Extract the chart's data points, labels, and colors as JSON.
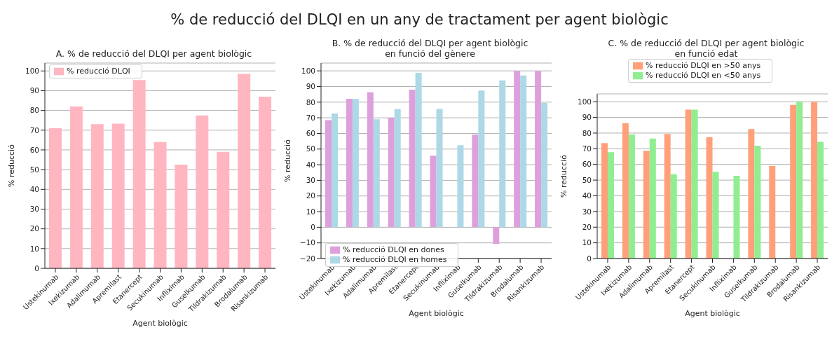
{
  "chart_data": [
    {
      "type": "bar",
      "title": "A. % de reducció del DLQI per agent biològic",
      "annotations": [
        "% de reducció del DLQI en un any de tractament per agent biològic"
      ],
      "xlabel": "Agent biològic",
      "ylabel": "% reducció",
      "categories": [
        "Ustekinumab",
        "Ixekizumab",
        "Adalimumab",
        "Apremilast",
        "Etanercept",
        "Secukinumab",
        "Infliximab",
        "Guselkumab",
        "Tildrakizumab",
        "Brodalumab",
        "Risankizumab"
      ],
      "series": [
        {
          "name": "% reducció DLQI",
          "color": "#ffb6c1",
          "values": [
            71,
            82,
            73,
            73.3,
            95.4,
            64,
            52.5,
            77.5,
            59,
            98.5,
            87
          ]
        }
      ],
      "ylim": [
        0,
        104
      ],
      "yticks": [
        0,
        10,
        20,
        30,
        40,
        50,
        60,
        70,
        80,
        90,
        100
      ],
      "grid": "y",
      "legend": "top left"
    },
    {
      "type": "bar",
      "title": "B. % de reducció del DLQI per agent biològic en funció del gènere",
      "xlabel": "Agent biològic",
      "ylabel": "% reducció",
      "categories": [
        "Ustekinumab",
        "Ixekizumab",
        "Adalimumab",
        "Apremilast",
        "Etanercept",
        "Secukinumab",
        "Infliximab",
        "Guselkumab",
        "Tildrakizumab",
        "Brodalumab",
        "Risankizumab"
      ],
      "series": [
        {
          "name": "% reducció DLQI en dones",
          "color": "#dda0dd",
          "values": [
            68.5,
            82.2,
            86.3,
            70,
            88,
            45.7,
            null,
            59.3,
            -10.7,
            100,
            100
          ]
        },
        {
          "name": "% reducció DLQI en homes",
          "color": "#add8e6",
          "values": [
            72.7,
            82,
            69,
            75.5,
            98.7,
            75.7,
            52.5,
            87.4,
            93.9,
            97,
            79.5
          ]
        }
      ],
      "ylim": [
        -20,
        105
      ],
      "yticks": [
        -20,
        -10,
        0,
        10,
        20,
        30,
        40,
        50,
        60,
        70,
        80,
        90,
        100
      ],
      "grid": "y",
      "legend": "bottom left"
    },
    {
      "type": "bar",
      "title": "C. % de reducció del DLQI per agent biològic en funció edat",
      "xlabel": "Agent biològic",
      "ylabel": "% reducció",
      "categories": [
        "Ustekinumab",
        "Ixekizumab",
        "Adalimumab",
        "Apremilast",
        "Etanercept",
        "Secukinumab",
        "Infliximab",
        "Guselkumab",
        "Tildrakizumab",
        "Brodalumab",
        "Risankizumab"
      ],
      "series": [
        {
          "name": "% reducció DLQI en >50 anys",
          "color": "#ffa07a",
          "values": [
            73.6,
            86.4,
            68.7,
            79.4,
            95,
            77.4,
            null,
            82.5,
            59,
            98,
            100
          ]
        },
        {
          "name": "% reducció DLQI en <50 anys",
          "color": "#90ee90",
          "values": [
            67.8,
            79.1,
            76.5,
            53.7,
            95,
            55.3,
            52.7,
            71.9,
            null,
            100,
            74.4
          ]
        }
      ],
      "ylim": [
        0,
        105
      ],
      "yticks": [
        0,
        10,
        20,
        30,
        40,
        50,
        60,
        70,
        80,
        90,
        100
      ],
      "grid": "y",
      "legend": "top"
    }
  ]
}
